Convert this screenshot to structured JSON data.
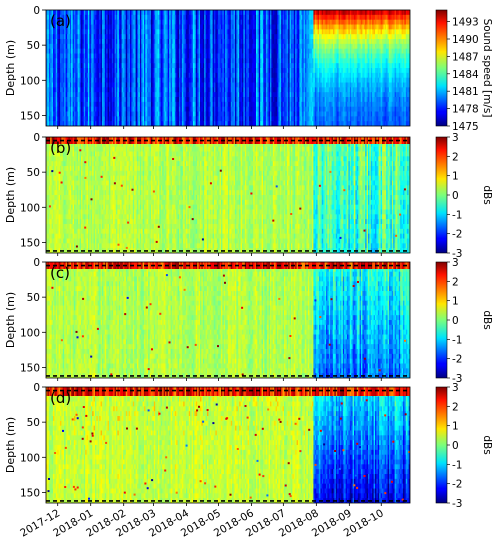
{
  "chart_data": [
    {
      "type": "heatmap",
      "panel_label": "(a)",
      "ylabel": "Depth (m)",
      "ylim": [
        165,
        0
      ],
      "yticks": [
        0,
        50,
        100,
        150
      ],
      "colorbar": {
        "label": "Sound speed [m/s]",
        "range": [
          1475,
          1495
        ],
        "ticks": [
          1475,
          1478,
          1481,
          1484,
          1487,
          1490,
          1493
        ],
        "colormap": "jet"
      },
      "field": {
        "background_value": 1479,
        "variability": "vertical streaks across time",
        "late_period_start": "2018-07-29",
        "surface_max_late": 1494,
        "depth_min_late": 1478
      }
    },
    {
      "type": "heatmap",
      "panel_label": "(b)",
      "ylabel": "Depth (m)",
      "ylim": [
        165,
        0
      ],
      "yticks": [
        0,
        50,
        100,
        150
      ],
      "reference_lines_depth": [
        5,
        162
      ],
      "colorbar": {
        "label": "dBs",
        "range": [
          -3,
          3
        ],
        "ticks": [
          -3,
          -2,
          -1,
          0,
          1,
          2,
          3
        ],
        "colormap": "jet"
      },
      "field": {
        "background_value": 0.3,
        "surface_band_max": 3,
        "late_period_mean": -0.4
      }
    },
    {
      "type": "heatmap",
      "panel_label": "(c)",
      "ylabel": "Depth (m)",
      "ylim": [
        165,
        0
      ],
      "yticks": [
        0,
        50,
        100,
        150
      ],
      "reference_lines_depth": [
        5,
        162
      ],
      "colorbar": {
        "label": "dBs",
        "range": [
          -3,
          3
        ],
        "ticks": [
          -3,
          -2,
          -1,
          0,
          1,
          2,
          3
        ],
        "colormap": "jet"
      },
      "field": {
        "background_value": 0.3,
        "surface_band_max": 3,
        "late_period_mean": -1.2
      }
    },
    {
      "type": "heatmap",
      "panel_label": "(d)",
      "ylabel": "Depth (m)",
      "ylim": [
        165,
        0
      ],
      "yticks": [
        0,
        50,
        100,
        150
      ],
      "reference_lines_depth": [
        5,
        162
      ],
      "colorbar": {
        "label": "dBs",
        "range": [
          -3,
          3
        ],
        "ticks": [
          -3,
          -2,
          -1,
          0,
          1,
          2,
          3
        ],
        "colormap": "jet"
      },
      "field": {
        "background_value": 0.4,
        "surface_band_max": 3,
        "late_period_mean": -1.8
      }
    }
  ],
  "x_axis": {
    "range": [
      "2017-11-20",
      "2018-10-28"
    ],
    "ticks": [
      "2017-12",
      "2018-01",
      "2018-02",
      "2018-03",
      "2018-04",
      "2018-05",
      "2018-06",
      "2018-07",
      "2018-08",
      "2018-09",
      "2018-10"
    ],
    "tick_dates": [
      "2017-12-01",
      "2018-01-01",
      "2018-02-01",
      "2018-03-01",
      "2018-04-01",
      "2018-05-01",
      "2018-06-01",
      "2018-07-01",
      "2018-08-01",
      "2018-09-01",
      "2018-10-01"
    ]
  }
}
